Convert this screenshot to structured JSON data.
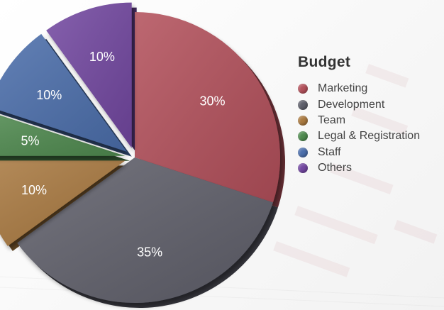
{
  "chart_data": {
    "type": "pie",
    "title": "Budget",
    "legend_position": "right",
    "categories": [
      "Marketing",
      "Development",
      "Team",
      "Legal & Registration",
      "Staff",
      "Others"
    ],
    "values": [
      30,
      35,
      10,
      5,
      10,
      10
    ],
    "labels": [
      "30%",
      "35%",
      "10%",
      "5%",
      "10%",
      "10%"
    ],
    "colors": [
      "#b2505a",
      "#5e5f6b",
      "#a9793f",
      "#4f8a4f",
      "#4b6eab",
      "#7247a0"
    ],
    "exploded": [
      false,
      false,
      true,
      true,
      true,
      true
    ]
  }
}
